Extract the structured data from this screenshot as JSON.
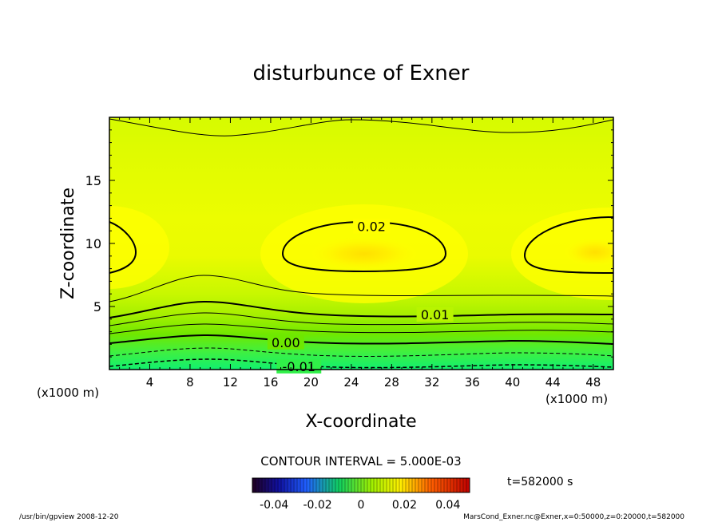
{
  "chart_data": {
    "type": "heatmap",
    "title": "disturbunce of Exner",
    "xlabel": "X-coordinate",
    "ylabel": "Z-coordinate",
    "x_unit_left": "(x1000 m)",
    "x_unit_right": "(x1000 m)",
    "xlim": [
      0,
      50
    ],
    "ylim": [
      0,
      20
    ],
    "xticks": [
      "4",
      "8",
      "12",
      "16",
      "20",
      "24",
      "28",
      "32",
      "36",
      "40",
      "44",
      "48"
    ],
    "yticks": [
      "5",
      "10",
      "15"
    ],
    "contour_labels": [
      {
        "text": "0.02",
        "x": 26,
        "y": 11.3
      },
      {
        "text": "0.01",
        "x": 32.3,
        "y": 4.3
      },
      {
        "text": "0.00",
        "x": 17.5,
        "y": 2.1
      },
      {
        "text": "-0.01",
        "x": 18.8,
        "y": 0.2
      }
    ],
    "contour_interval": "CONTOUR INTERVAL = 5.000E-03",
    "colorbar_ticks": [
      "-0.04",
      "-0.02",
      "0",
      "0.02",
      "0.04"
    ],
    "colorbar_range": [
      -0.05,
      0.05
    ],
    "time_label": "t=582000 s",
    "colors": {
      "strong_max": "#ffe800",
      "max": "#ffff00",
      "upper": "#dfff00",
      "mid": "#c6ff00",
      "low": "#80f000",
      "lowest": "#20f060"
    }
  },
  "footer": {
    "left": "/usr/bin/gpview   2008-12-20",
    "right": "MarsCond_Exner.nc@Exner,x=0:50000,z=0:20000,t=582000"
  }
}
